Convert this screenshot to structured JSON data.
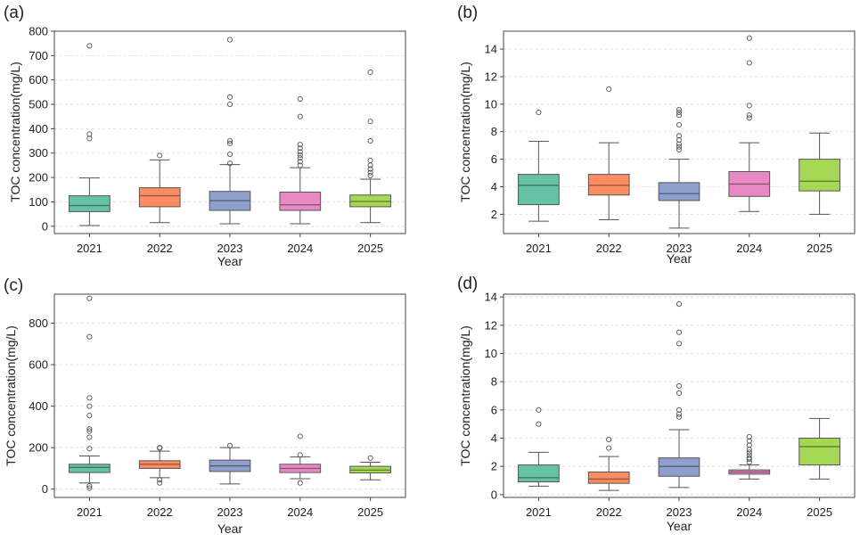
{
  "figure": {
    "panel_labels": [
      "(a)",
      "(b)",
      "(c)",
      "(d)"
    ]
  },
  "colors": {
    "2021": "#66c2a5",
    "2022": "#fc8d62",
    "2023": "#8da0cb",
    "2024": "#e78ac3",
    "2025": "#a6d854"
  },
  "chart_data": [
    {
      "type": "box",
      "panel": "(a)",
      "xlabel": "Year",
      "ylabel": "TOC concentration(mg/L)",
      "ylim": [
        -30,
        800
      ],
      "yticks": [
        0,
        100,
        200,
        300,
        400,
        500,
        600,
        700,
        800
      ],
      "grid": "horizontal dashed",
      "categories": [
        "2021",
        "2022",
        "2023",
        "2024",
        "2025"
      ],
      "boxes": [
        {
          "category": "2021",
          "min": 3,
          "q1": 60,
          "median": 85,
          "q3": 125,
          "max": 198,
          "outliers": [
            360,
            378,
            740
          ]
        },
        {
          "category": "2022",
          "min": 15,
          "q1": 80,
          "median": 125,
          "q3": 158,
          "max": 272,
          "outliers": [
            290
          ]
        },
        {
          "category": "2023",
          "min": 10,
          "q1": 65,
          "median": 105,
          "q3": 143,
          "max": 253,
          "outliers": [
            258,
            295,
            340,
            350,
            500,
            530,
            765
          ]
        },
        {
          "category": "2024",
          "min": 10,
          "q1": 65,
          "median": 88,
          "q3": 140,
          "max": 240,
          "outliers": [
            250,
            265,
            280,
            292,
            305,
            320,
            335,
            450,
            522
          ]
        },
        {
          "category": "2025",
          "min": 15,
          "q1": 80,
          "median": 102,
          "q3": 128,
          "max": 193,
          "outliers": [
            208,
            220,
            235,
            250,
            270,
            350,
            430,
            632
          ]
        }
      ]
    },
    {
      "type": "box",
      "panel": "(b)",
      "xlabel": "Year",
      "ylabel": "TOC concentration(mg/L)",
      "ylim": [
        0.6,
        15.3
      ],
      "yticks": [
        2,
        4,
        6,
        8,
        10,
        12,
        14
      ],
      "grid": "horizontal dashed",
      "categories": [
        "2021",
        "2022",
        "2023",
        "2024",
        "2025"
      ],
      "boxes": [
        {
          "category": "2021",
          "min": 1.5,
          "q1": 2.7,
          "median": 4.1,
          "q3": 4.9,
          "max": 7.3,
          "outliers": [
            9.4
          ]
        },
        {
          "category": "2022",
          "min": 1.6,
          "q1": 3.4,
          "median": 4.1,
          "q3": 4.9,
          "max": 7.2,
          "outliers": [
            11.1
          ]
        },
        {
          "category": "2023",
          "min": 1.0,
          "q1": 3.0,
          "median": 3.5,
          "q3": 4.3,
          "max": 6.0,
          "outliers": [
            6.7,
            6.9,
            7.1,
            7.4,
            7.7,
            8.5,
            9.2,
            9.4,
            9.6
          ]
        },
        {
          "category": "2024",
          "min": 2.2,
          "q1": 3.3,
          "median": 4.2,
          "q3": 5.1,
          "max": 7.2,
          "outliers": [
            9.0,
            9.2,
            9.9,
            13.0,
            14.8
          ]
        },
        {
          "category": "2025",
          "min": 2.0,
          "q1": 3.7,
          "median": 4.4,
          "q3": 6.0,
          "max": 7.9,
          "outliers": []
        }
      ]
    },
    {
      "type": "box",
      "panel": "(c)",
      "xlabel": "Year",
      "ylabel": "TOC concentration(mg/L)",
      "ylim": [
        -40,
        940
      ],
      "yticks": [
        0,
        200,
        400,
        600,
        800
      ],
      "grid": "horizontal dashed",
      "categories": [
        "2021",
        "2022",
        "2023",
        "2024",
        "2025"
      ],
      "boxes": [
        {
          "category": "2021",
          "min": 30,
          "q1": 80,
          "median": 105,
          "q3": 120,
          "max": 160,
          "outliers": [
            5,
            15,
            195,
            250,
            280,
            290,
            355,
            400,
            440,
            735,
            920
          ]
        },
        {
          "category": "2022",
          "min": 55,
          "q1": 100,
          "median": 120,
          "q3": 137,
          "max": 183,
          "outliers": [
            30,
            45,
            198,
            200
          ]
        },
        {
          "category": "2023",
          "min": 25,
          "q1": 85,
          "median": 112,
          "q3": 140,
          "max": 200,
          "outliers": [
            210
          ]
        },
        {
          "category": "2024",
          "min": 50,
          "q1": 80,
          "median": 100,
          "q3": 120,
          "max": 155,
          "outliers": [
            30,
            165,
            255
          ]
        },
        {
          "category": "2025",
          "min": 45,
          "q1": 78,
          "median": 92,
          "q3": 110,
          "max": 130,
          "outliers": [
            150
          ]
        }
      ]
    },
    {
      "type": "box",
      "panel": "(d)",
      "xlabel": "Year",
      "ylabel": "TOC concentration(mg/L)",
      "ylim": [
        -0.2,
        14.2
      ],
      "yticks": [
        0,
        2,
        4,
        6,
        8,
        10,
        12,
        14
      ],
      "grid": "horizontal dashed",
      "categories": [
        "2021",
        "2022",
        "2023",
        "2024",
        "2025"
      ],
      "boxes": [
        {
          "category": "2021",
          "min": 0.6,
          "q1": 0.9,
          "median": 1.2,
          "q3": 2.1,
          "max": 3.0,
          "outliers": [
            5.0,
            6.0
          ]
        },
        {
          "category": "2022",
          "min": 0.3,
          "q1": 0.8,
          "median": 1.1,
          "q3": 1.6,
          "max": 2.7,
          "outliers": [
            3.3,
            3.9
          ]
        },
        {
          "category": "2023",
          "min": 0.5,
          "q1": 1.3,
          "median": 2.0,
          "q3": 2.6,
          "max": 4.6,
          "outliers": [
            5.5,
            5.7,
            6.0,
            7.2,
            7.7,
            10.7,
            11.5,
            13.5
          ]
        },
        {
          "category": "2024",
          "min": 1.1,
          "q1": 1.45,
          "median": 1.6,
          "q3": 1.75,
          "max": 2.1,
          "outliers": [
            2.3,
            2.5,
            2.6,
            2.8,
            3.0,
            3.2,
            3.5,
            3.8,
            4.1
          ]
        },
        {
          "category": "2025",
          "min": 1.1,
          "q1": 2.1,
          "median": 3.4,
          "q3": 4.0,
          "max": 5.4,
          "outliers": []
        }
      ]
    }
  ]
}
